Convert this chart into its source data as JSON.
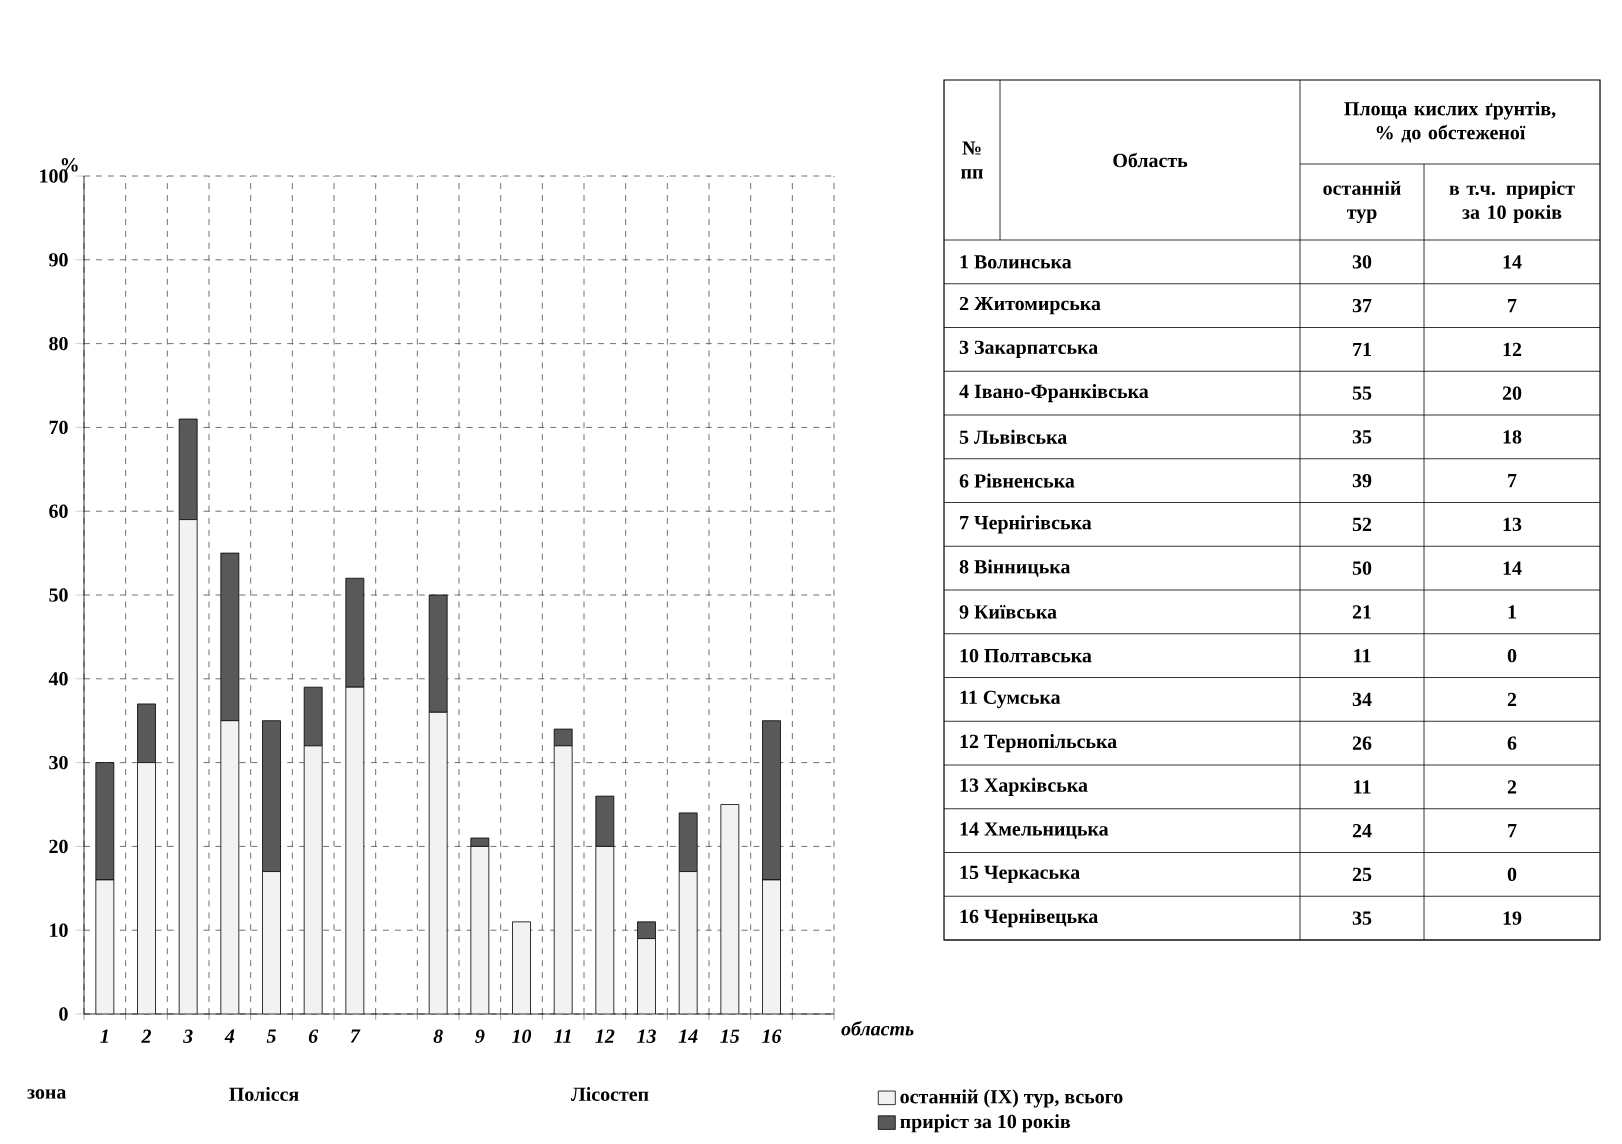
{
  "chart_data": [
    {
      "type": "bar",
      "stacked": true,
      "ylabel": "%",
      "xlabel": "область",
      "categories": [
        "1",
        "2",
        "3",
        "4",
        "5",
        "6",
        "7",
        null,
        "8",
        "9",
        "10",
        "11",
        "12",
        "13",
        "14",
        "15",
        "16",
        null
      ],
      "series": [
        {
          "name": "останній (IX) тур, всього",
          "color": "#f2f2f2",
          "values": [
            16,
            30,
            59,
            35,
            17,
            32,
            39,
            null,
            36,
            20,
            11,
            32,
            20,
            9,
            17,
            25,
            16,
            null
          ]
        },
        {
          "name": "приріст за 10 років",
          "color": "#595959",
          "values": [
            14,
            7,
            12,
            20,
            18,
            7,
            13,
            null,
            14,
            1,
            0,
            2,
            6,
            2,
            7,
            0,
            19,
            null
          ]
        }
      ],
      "ylim": [
        0,
        100
      ],
      "yticks": [
        0,
        10,
        20,
        30,
        40,
        50,
        60,
        70,
        80,
        90,
        100
      ],
      "grid": true,
      "legend": "bottom",
      "annotations": [
        "зона",
        "Полісся",
        "Лісостеп"
      ]
    },
    {
      "type": "other",
      "annotations": [
        "№ пп",
        "Область",
        "Площа кислих ґрунтів, % до обстеженої",
        "останній тур",
        "в т.ч. приріст за 10 років",
        "1 Волинська",
        "30",
        "14",
        "2 Житомирська",
        "37",
        "7",
        "3 Закарпатська",
        "71",
        "12",
        "4 Івано-Франківська",
        "55",
        "20",
        "5 Львівська",
        "35",
        "18",
        "6 Рівненська",
        "39",
        "7",
        "7 Чернігівська",
        "52",
        "13",
        "8 Вінницька",
        "50",
        "14",
        "9 Київська",
        "21",
        "1",
        "10 Полтавська",
        "11",
        "0",
        "11 Сумська",
        "34",
        "2",
        "12 Тернопільська",
        "26",
        "6",
        "13 Харківська",
        "11",
        "2",
        "14 Хмельницька",
        "24",
        "7",
        "15 Черкаська",
        "25",
        "0",
        "16 Чернівецька",
        "35",
        "19"
      ]
    }
  ]
}
